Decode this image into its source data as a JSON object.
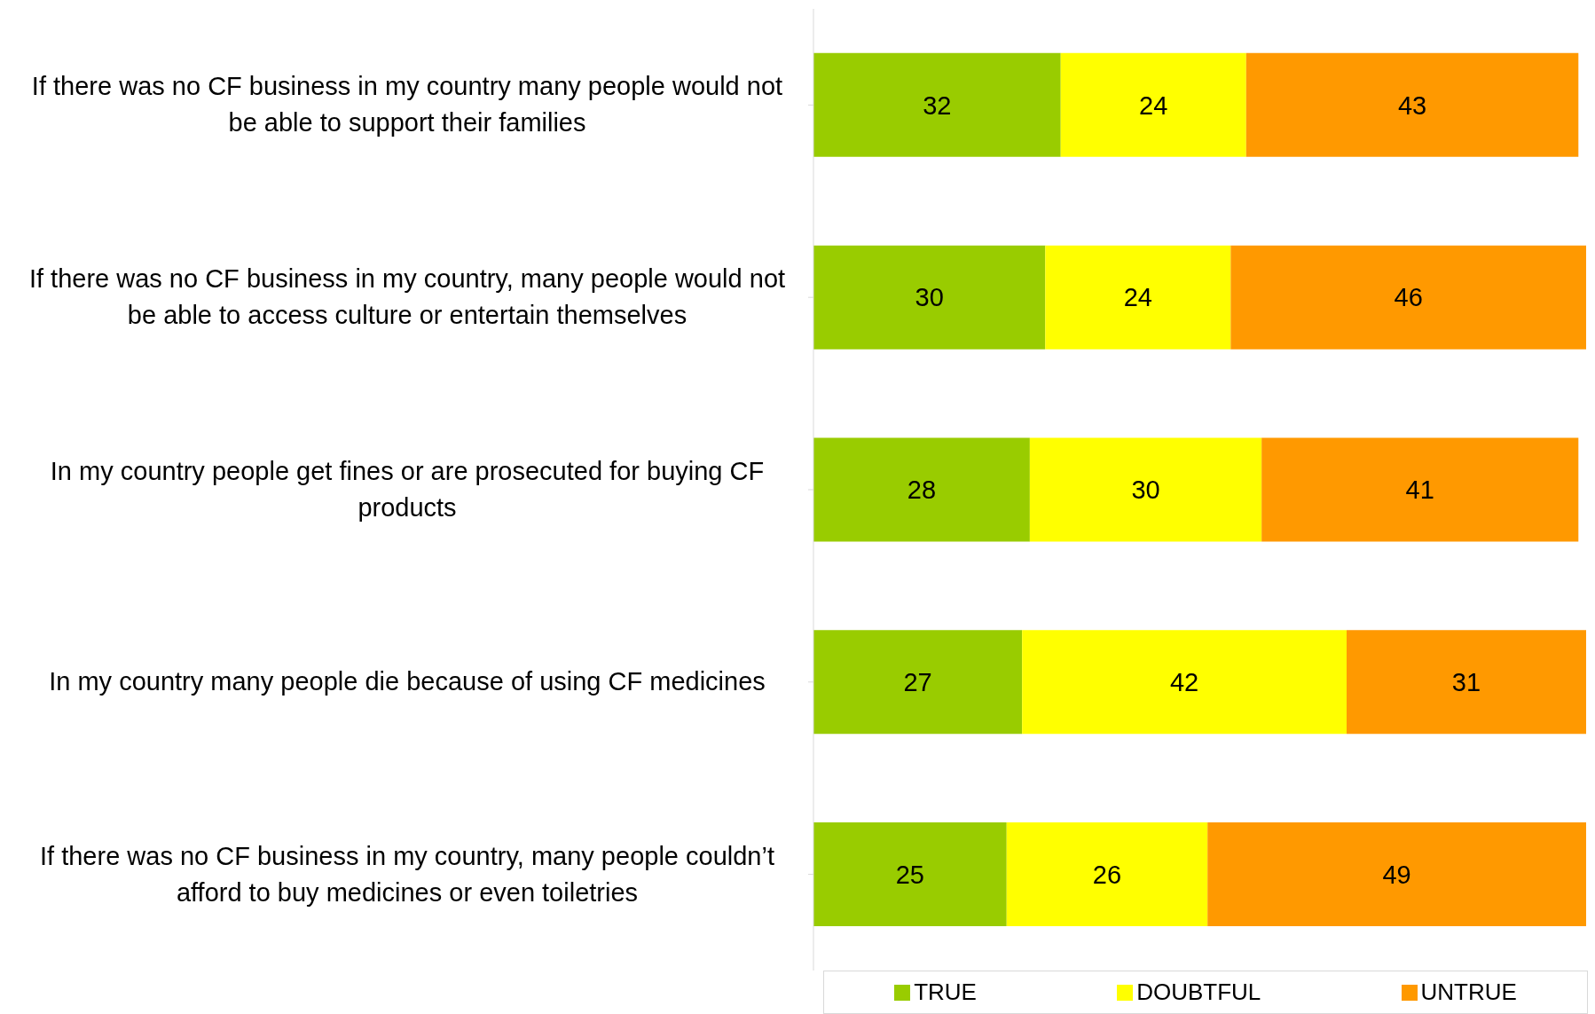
{
  "chart_data": {
    "type": "bar",
    "orientation": "horizontal",
    "stacked": true,
    "categories": [
      "If there was no CF business in my country many people would not be able to support their families",
      "If there was no CF business in my country, many people would not be able to access culture or entertain themselves",
      "In my country people get fines or are prosecuted for buying CF products",
      "In my country many people die because of using CF medicines",
      "If there was no CF business in my country, many people couldn’t afford to buy medicines or even toiletries"
    ],
    "series": [
      {
        "name": "TRUE",
        "color": "#99cc00",
        "values": [
          32,
          30,
          28,
          27,
          25
        ]
      },
      {
        "name": "DOUBTFUL",
        "color": "#ffff00",
        "values": [
          24,
          24,
          30,
          42,
          26
        ]
      },
      {
        "name": "UNTRUE",
        "color": "#ff9900",
        "values": [
          43,
          46,
          41,
          31,
          49
        ]
      }
    ],
    "xlim": [
      0,
      100
    ],
    "data_labels": true,
    "legend": "bottom",
    "tick_labels": "y",
    "grid": false
  }
}
